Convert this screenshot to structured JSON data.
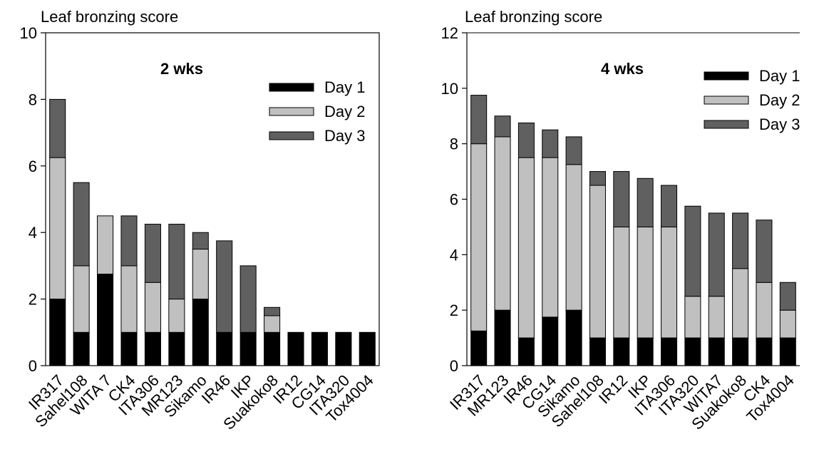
{
  "chart_data": [
    {
      "type": "bar",
      "stacked": true,
      "title": "2 wks",
      "ylabel": "Leaf bronzing score",
      "ylim": [
        0,
        10
      ],
      "yticks": [
        0,
        2,
        4,
        6,
        8,
        10
      ],
      "legend_position": "top-right",
      "categories": [
        "IR317",
        "Sahel108",
        "WITA 7",
        "CK4",
        "ITA306",
        "MR123",
        "Sikamo",
        "IR46",
        "IKP",
        "Suakoko8",
        "IR12",
        "CG14",
        "ITA320",
        "Tox4004"
      ],
      "series": [
        {
          "name": "Day 1",
          "color": "#000000",
          "values": [
            2.0,
            1.0,
            2.75,
            1.0,
            1.0,
            1.0,
            2.0,
            1.0,
            1.0,
            1.0,
            1.0,
            1.0,
            1.0,
            1.0
          ]
        },
        {
          "name": "Day 2",
          "color": "#c0c0c0",
          "values": [
            4.25,
            2.0,
            1.75,
            2.0,
            1.5,
            1.0,
            1.5,
            0,
            0,
            0.5,
            0,
            0,
            0,
            0
          ]
        },
        {
          "name": "Day 3",
          "color": "#606060",
          "values": [
            1.75,
            2.5,
            0,
            1.5,
            1.75,
            2.25,
            0.5,
            2.75,
            2.0,
            0.25,
            0,
            0,
            0,
            0
          ]
        }
      ]
    },
    {
      "type": "bar",
      "stacked": true,
      "title": "4 wks",
      "ylabel": "Leaf bronzing score",
      "ylim": [
        0,
        12
      ],
      "yticks": [
        0,
        2,
        4,
        6,
        8,
        10,
        12
      ],
      "legend_position": "top-right",
      "categories": [
        "IR317",
        "MR123",
        "IR46",
        "CG14",
        "Sikamo",
        "Sahel108",
        "IR12",
        "IKP",
        "ITA306",
        "ITA320",
        "WITA7",
        "Suakoko8",
        "CK4",
        "Tox4004"
      ],
      "series": [
        {
          "name": "Day 1",
          "color": "#000000",
          "values": [
            1.25,
            2.0,
            1.0,
            1.75,
            2.0,
            1.0,
            1.0,
            1.0,
            1.0,
            1.0,
            1.0,
            1.0,
            1.0,
            1.0
          ]
        },
        {
          "name": "Day 2",
          "color": "#c0c0c0",
          "values": [
            6.75,
            6.25,
            6.5,
            5.75,
            5.25,
            5.5,
            4.0,
            4.0,
            4.0,
            1.5,
            1.5,
            2.5,
            2.0,
            1.0
          ]
        },
        {
          "name": "Day 3",
          "color": "#606060",
          "values": [
            1.75,
            0.75,
            1.25,
            1.0,
            1.0,
            0.5,
            2.0,
            1.75,
            1.5,
            3.25,
            3.0,
            2.0,
            2.25,
            1.0
          ]
        }
      ]
    }
  ]
}
